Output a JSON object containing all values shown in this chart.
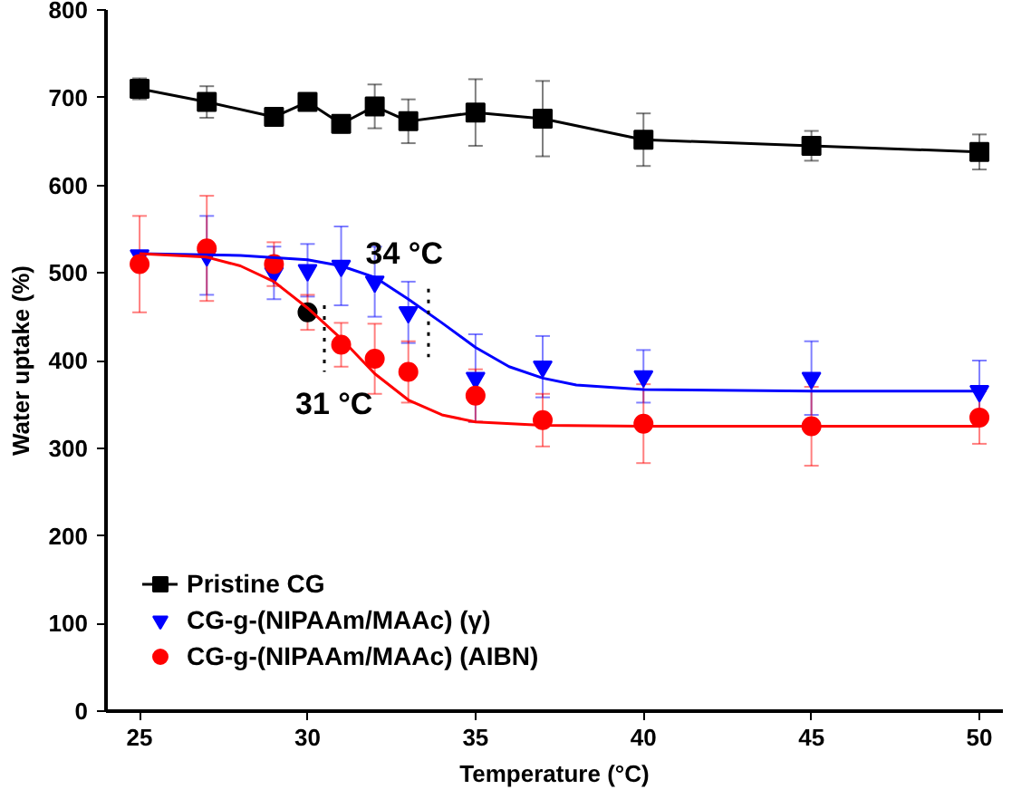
{
  "chart_data": {
    "type": "line",
    "xlabel": "Temperature (°C)",
    "ylabel": "Water uptake (%)",
    "xlim": [
      24,
      50.7
    ],
    "xticks": [
      25,
      30,
      35,
      40,
      45,
      50
    ],
    "ylim": [
      0,
      800
    ],
    "yticks": [
      0,
      100,
      200,
      300,
      400,
      500,
      600,
      700,
      800
    ],
    "grid": false,
    "legend": "bottom left",
    "annotations": [
      {
        "text": "34 °C",
        "x": 33.6,
        "y": 482
      },
      {
        "text": "31 °C",
        "x": 30.5,
        "y": 387
      }
    ],
    "series": [
      {
        "name": "Pristine CG",
        "color": "#000000",
        "marker": "square",
        "x": [
          25,
          27,
          29,
          30,
          31,
          32,
          33,
          35,
          37,
          40,
          45,
          50
        ],
        "values": [
          710,
          695,
          678,
          695,
          670,
          690,
          673,
          683,
          676,
          652,
          645,
          638
        ],
        "errors": [
          12,
          18,
          5,
          5,
          10,
          25,
          25,
          38,
          43,
          30,
          17,
          20
        ]
      },
      {
        "name": "CG-g-(NIPAAm/MAAc) (γ)",
        "type": "scatter",
        "color": "#0000ff",
        "marker": "triangle",
        "x": [
          25,
          27,
          29,
          30,
          31,
          32,
          33,
          35,
          37,
          40,
          45,
          50
        ],
        "values": [
          520,
          520,
          500,
          503,
          508,
          490,
          455,
          380,
          393,
          382,
          380,
          365
        ],
        "errors": [
          null,
          45,
          30,
          30,
          45,
          40,
          35,
          50,
          35,
          30,
          42,
          35
        ]
      },
      {
        "name": "CG-g-(NIPAAm/MAAc) (AIBN)",
        "type": "scatter",
        "color": "#ff0000",
        "colors": [
          "#ff0000",
          "#ff0000",
          "#ff0000",
          "#000000",
          "#ff0000",
          "#ff0000",
          "#ff0000",
          "#ff0000",
          "#ff0000",
          "#ff0000",
          "#ff0000",
          "#ff0000"
        ],
        "marker": "circle",
        "x": [
          25,
          27,
          29,
          30,
          31,
          32,
          33,
          35,
          37,
          40,
          45,
          50
        ],
        "values": [
          510,
          528,
          510,
          455,
          418,
          402,
          387,
          360,
          332,
          328,
          325,
          335
        ],
        "errors": [
          55,
          60,
          25,
          20,
          25,
          40,
          35,
          30,
          30,
          45,
          45,
          30
        ]
      },
      {
        "color": "#0000ff",
        "marker": "none",
        "x": [
          25,
          28,
          30,
          31,
          32,
          33,
          34,
          35,
          36,
          37,
          38,
          40,
          45,
          50
        ],
        "values": [
          522,
          520,
          515,
          508,
          495,
          470,
          443,
          415,
          393,
          380,
          372,
          367,
          365,
          365
        ]
      },
      {
        "color": "#ff0000",
        "marker": "none",
        "x": [
          25,
          27,
          28,
          29,
          30,
          31,
          32,
          33,
          34,
          35,
          37,
          40,
          50
        ],
        "values": [
          522,
          518,
          508,
          490,
          460,
          425,
          385,
          355,
          338,
          330,
          326,
          325,
          325
        ]
      },
      {
        "color": "#000000",
        "marker": "none",
        "line_style": "dotted",
        "x": [
          30.5,
          30.5
        ],
        "values": [
          463,
          387
        ]
      },
      {
        "color": "#000000",
        "marker": "none",
        "line_style": "dotted",
        "x": [
          33.6,
          33.6
        ],
        "values": [
          482,
          404
        ]
      }
    ]
  }
}
